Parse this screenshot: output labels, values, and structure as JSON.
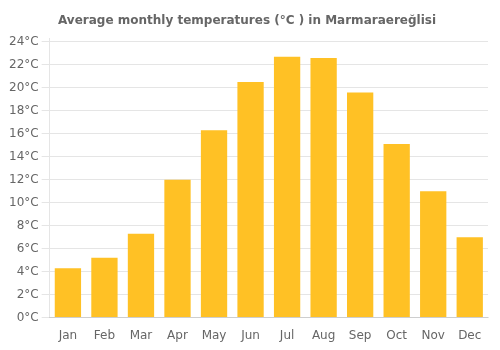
{
  "chart_data": {
    "type": "bar",
    "title": "Average monthly temperatures (°C ) in Marmaraereğlisi",
    "categories": [
      "Jan",
      "Feb",
      "Mar",
      "Apr",
      "May",
      "Jun",
      "Jul",
      "Aug",
      "Sep",
      "Oct",
      "Nov",
      "Dec"
    ],
    "values": [
      4.3,
      5.2,
      7.3,
      12.0,
      16.3,
      20.5,
      22.7,
      22.6,
      19.6,
      15.1,
      11.0,
      7.0
    ],
    "color": "#FFC125",
    "ylim": [
      0,
      24.3
    ],
    "yticks": [
      {
        "value": 0,
        "label": "0°C"
      },
      {
        "value": 2,
        "label": "2°C"
      },
      {
        "value": 4,
        "label": "4°C"
      },
      {
        "value": 6,
        "label": "6°C"
      },
      {
        "value": 8,
        "label": "8°C"
      },
      {
        "value": 10,
        "label": "10°C"
      },
      {
        "value": 12,
        "label": "12°C"
      },
      {
        "value": 14,
        "label": "14°C"
      },
      {
        "value": 16,
        "label": "16°C"
      },
      {
        "value": 18,
        "label": "18°C"
      },
      {
        "value": 20,
        "label": "20°C"
      },
      {
        "value": 22,
        "label": "22°C"
      },
      {
        "value": 24,
        "label": "24°C"
      }
    ],
    "grid": true
  }
}
